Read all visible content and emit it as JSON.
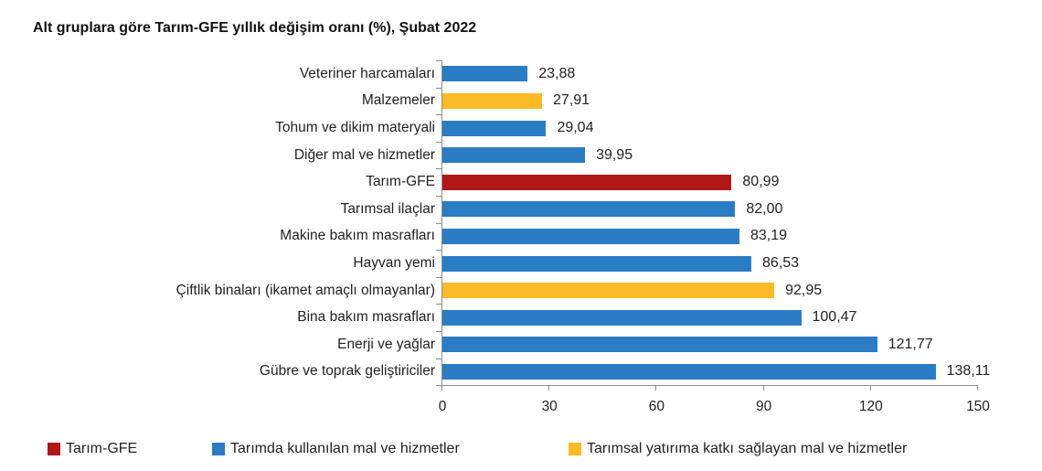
{
  "title": "Alt gruplara göre Tarım-GFE yıllık değişim oranı (%), Şubat 2022",
  "colors": {
    "tarim_gfe": "#b01818",
    "kullanilan": "#2a7dc4",
    "yatirim": "#fbbb26"
  },
  "legend": [
    {
      "label": "Tarım-GFE",
      "color": "#b01818"
    },
    {
      "label": "Tarımda kullanılan mal ve hizmetler",
      "color": "#2a7dc4"
    },
    {
      "label": "Tarımsal yatırıma katkı sağlayan mal ve hizmetler",
      "color": "#fbbb26"
    }
  ],
  "x_ticks": [
    "0",
    "30",
    "60",
    "90",
    "120",
    "150"
  ],
  "chart_data": {
    "type": "bar",
    "orientation": "horizontal",
    "title": "Alt gruplara göre Tarım-GFE yıllık değişim oranı (%), Şubat 2022",
    "xlabel": "",
    "ylabel": "",
    "xlim": [
      0,
      150
    ],
    "x_ticks": [
      0,
      30,
      60,
      90,
      120,
      150
    ],
    "grid": false,
    "legend_position": "bottom",
    "categories": [
      "Veteriner harcamaları",
      "Malzemeler",
      "Tohum ve dikim materyali",
      "Diğer mal ve hizmetler",
      "Tarım-GFE",
      "Tarımsal ilaçlar",
      "Makine bakım masrafları",
      "Hayvan yemi",
      "Çiftlik binaları (ikamet amaçlı olmayanlar)",
      "Bina bakım masrafları",
      "Enerji ve yağlar",
      "Gübre ve toprak geliştiriciler"
    ],
    "values": [
      23.88,
      27.91,
      29.04,
      39.95,
      80.99,
      82.0,
      83.19,
      86.53,
      92.95,
      100.47,
      121.77,
      138.11
    ],
    "value_labels": [
      "23,88",
      "27,91",
      "29,04",
      "39,95",
      "80,99",
      "82,00",
      "83,19",
      "86,53",
      "92,95",
      "100,47",
      "121,77",
      "138,11"
    ],
    "groups": [
      "Tarımda kullanılan mal ve hizmetler",
      "Tarımsal yatırıma katkı sağlayan mal ve hizmetler",
      "Tarımda kullanılan mal ve hizmetler",
      "Tarımda kullanılan mal ve hizmetler",
      "Tarım-GFE",
      "Tarımda kullanılan mal ve hizmetler",
      "Tarımda kullanılan mal ve hizmetler",
      "Tarımda kullanılan mal ve hizmetler",
      "Tarımsal yatırıma katkı sağlayan mal ve hizmetler",
      "Tarımda kullanılan mal ve hizmetler",
      "Tarımda kullanılan mal ve hizmetler",
      "Tarımda kullanılan mal ve hizmetler"
    ],
    "bar_colors": [
      "#2a7dc4",
      "#fbbb26",
      "#2a7dc4",
      "#2a7dc4",
      "#b01818",
      "#2a7dc4",
      "#2a7dc4",
      "#2a7dc4",
      "#fbbb26",
      "#2a7dc4",
      "#2a7dc4",
      "#2a7dc4"
    ]
  }
}
